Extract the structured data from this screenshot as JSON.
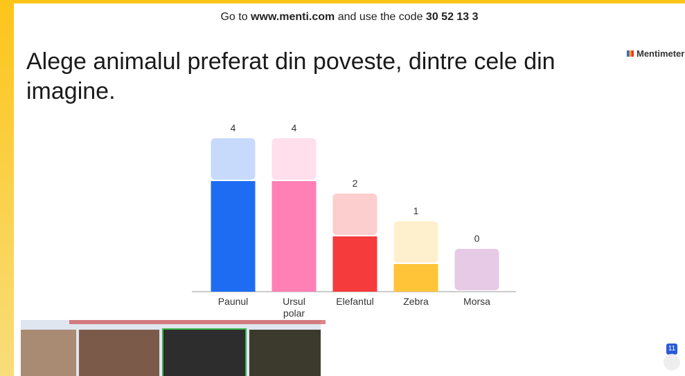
{
  "header": {
    "prefix": "Go to",
    "url": "www.menti.com",
    "middle": "and use the code",
    "code": "30 52 13 3"
  },
  "logo": "Mentimeter",
  "participants": "11",
  "chart_data": {
    "type": "bar",
    "title": "Alege animalul preferat din poveste, dintre cele din imagine.",
    "categories": [
      "Paunul",
      "Ursul polar",
      "Elefantul",
      "Zebra",
      "Morsa"
    ],
    "values": [
      4,
      4,
      2,
      1,
      0
    ],
    "colors": [
      "#1e6cf2",
      "#ff80b4",
      "#f53b3b",
      "#ffc437",
      "#9c2a9a"
    ],
    "ylim": [
      0,
      4
    ]
  }
}
